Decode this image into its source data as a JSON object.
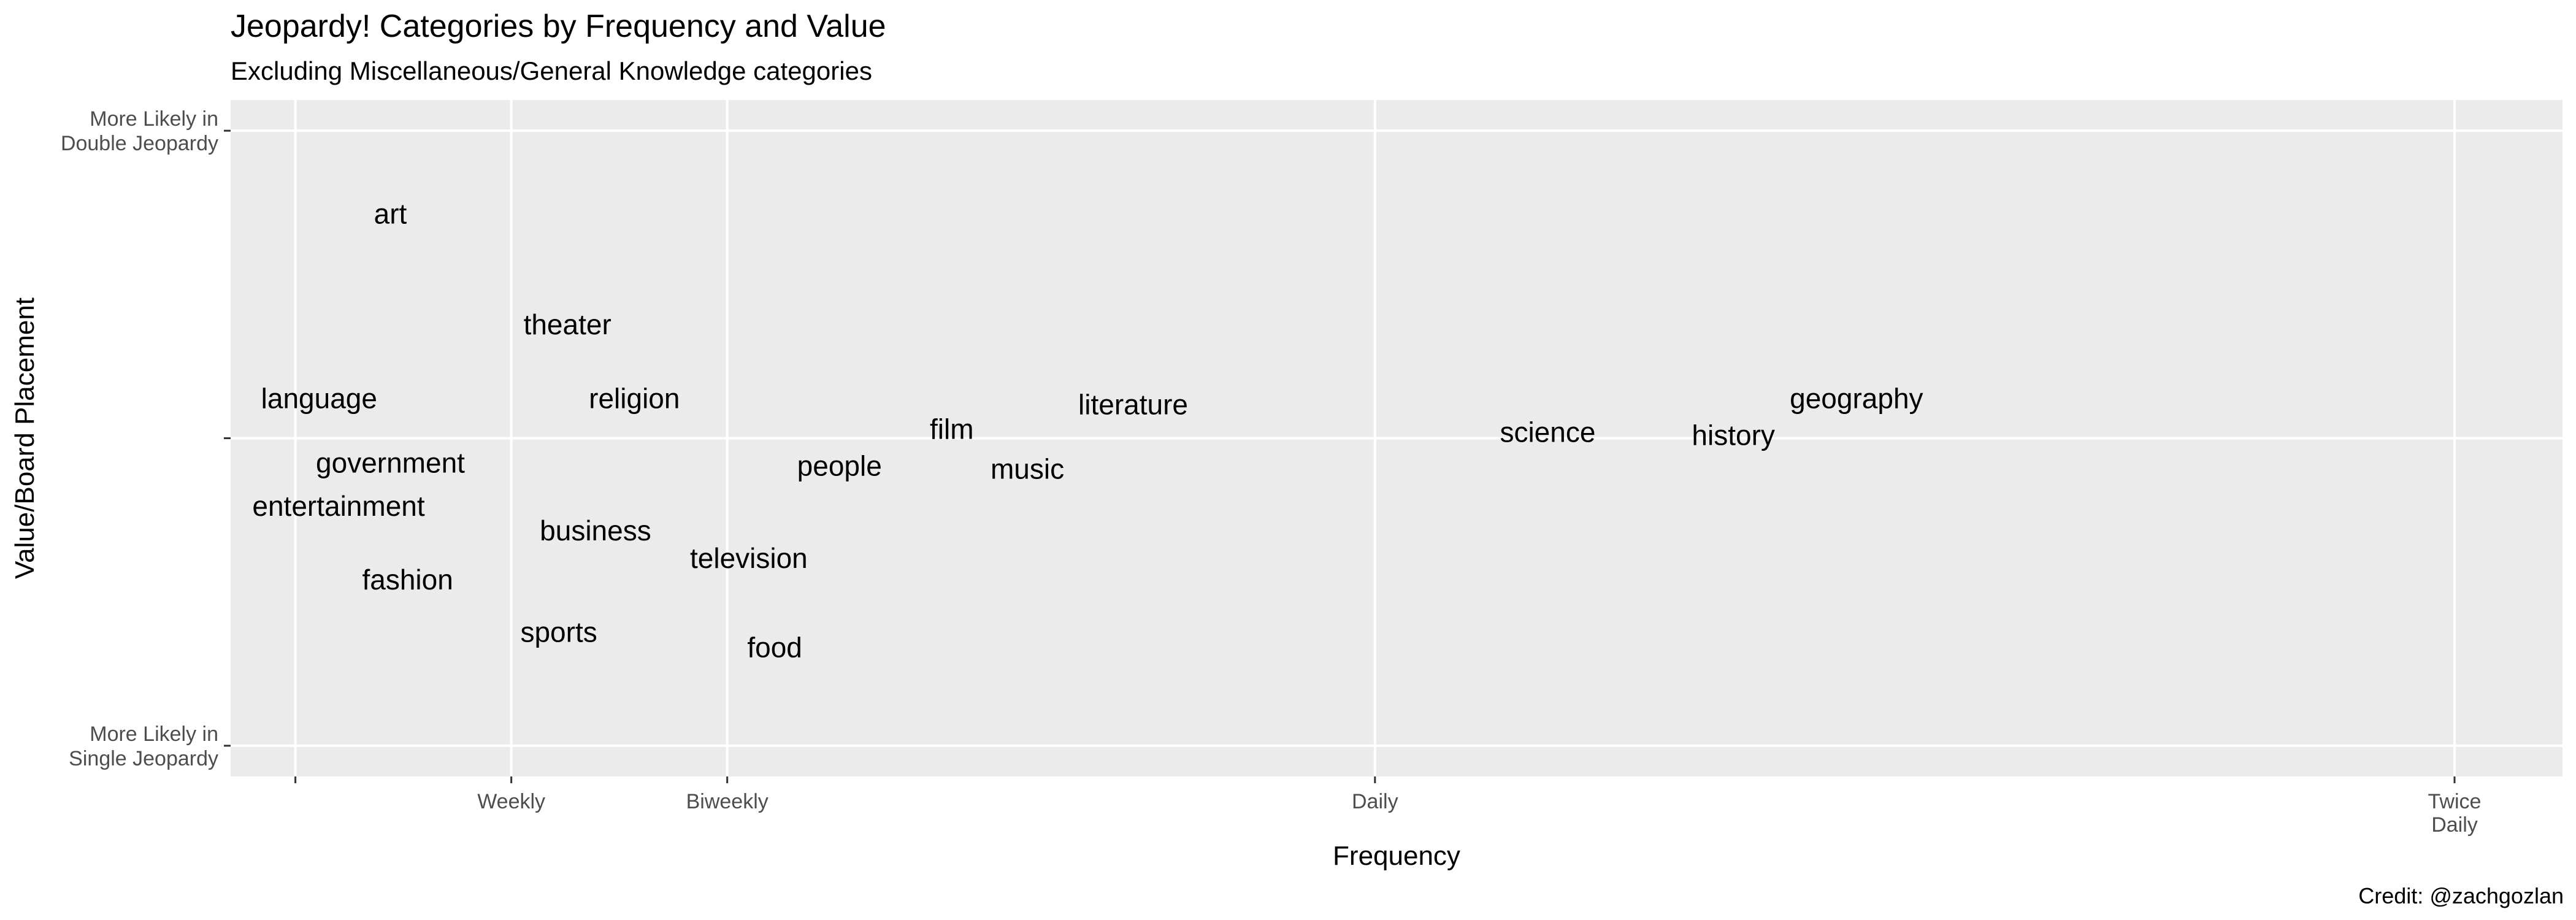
{
  "chart_data": {
    "type": "scatter",
    "title": "Jeopardy! Categories by Frequency and Value",
    "subtitle": "Excluding Miscellaneous/General Knowledge categories",
    "xlabel": "Frequency",
    "ylabel": "Value/Board Placement",
    "caption": "Credit: @zachgozlan",
    "xlim": [
      -0.3,
      10.5
    ],
    "ylim": [
      -1.1,
      1.1
    ],
    "x_ticks": [
      {
        "value": 0,
        "label": ""
      },
      {
        "value": 1,
        "label": "Weekly"
      },
      {
        "value": 2,
        "label": "Biweekly"
      },
      {
        "value": 5,
        "label": "Daily"
      },
      {
        "value": 10,
        "label": "Twice\nDaily"
      }
    ],
    "y_ticks": [
      {
        "value": -1,
        "label": "More Likely in\nSingle Jeopardy"
      },
      {
        "value": 0,
        "label": ""
      },
      {
        "value": 1,
        "label": "More Likely in\nDouble Jeopardy"
      }
    ],
    "grid": true,
    "points": [
      {
        "label": "art",
        "x": 0.44,
        "y": 0.73
      },
      {
        "label": "theater",
        "x": 1.26,
        "y": 0.37
      },
      {
        "label": "language",
        "x": 0.11,
        "y": 0.13
      },
      {
        "label": "religion",
        "x": 1.57,
        "y": 0.13
      },
      {
        "label": "government",
        "x": 0.44,
        "y": -0.08
      },
      {
        "label": "entertainment",
        "x": 0.2,
        "y": -0.22
      },
      {
        "label": "business",
        "x": 1.39,
        "y": -0.3
      },
      {
        "label": "television",
        "x": 2.1,
        "y": -0.39
      },
      {
        "label": "fashion",
        "x": 0.52,
        "y": -0.46
      },
      {
        "label": "sports",
        "x": 1.22,
        "y": -0.63
      },
      {
        "label": "food",
        "x": 2.22,
        "y": -0.68
      },
      {
        "label": "people",
        "x": 2.52,
        "y": -0.09
      },
      {
        "label": "film",
        "x": 3.04,
        "y": 0.03
      },
      {
        "label": "music",
        "x": 3.39,
        "y": -0.1
      },
      {
        "label": "literature",
        "x": 3.88,
        "y": 0.11
      },
      {
        "label": "science",
        "x": 5.8,
        "y": 0.02
      },
      {
        "label": "history",
        "x": 6.66,
        "y": 0.01
      },
      {
        "label": "geography",
        "x": 7.23,
        "y": 0.13
      }
    ]
  }
}
